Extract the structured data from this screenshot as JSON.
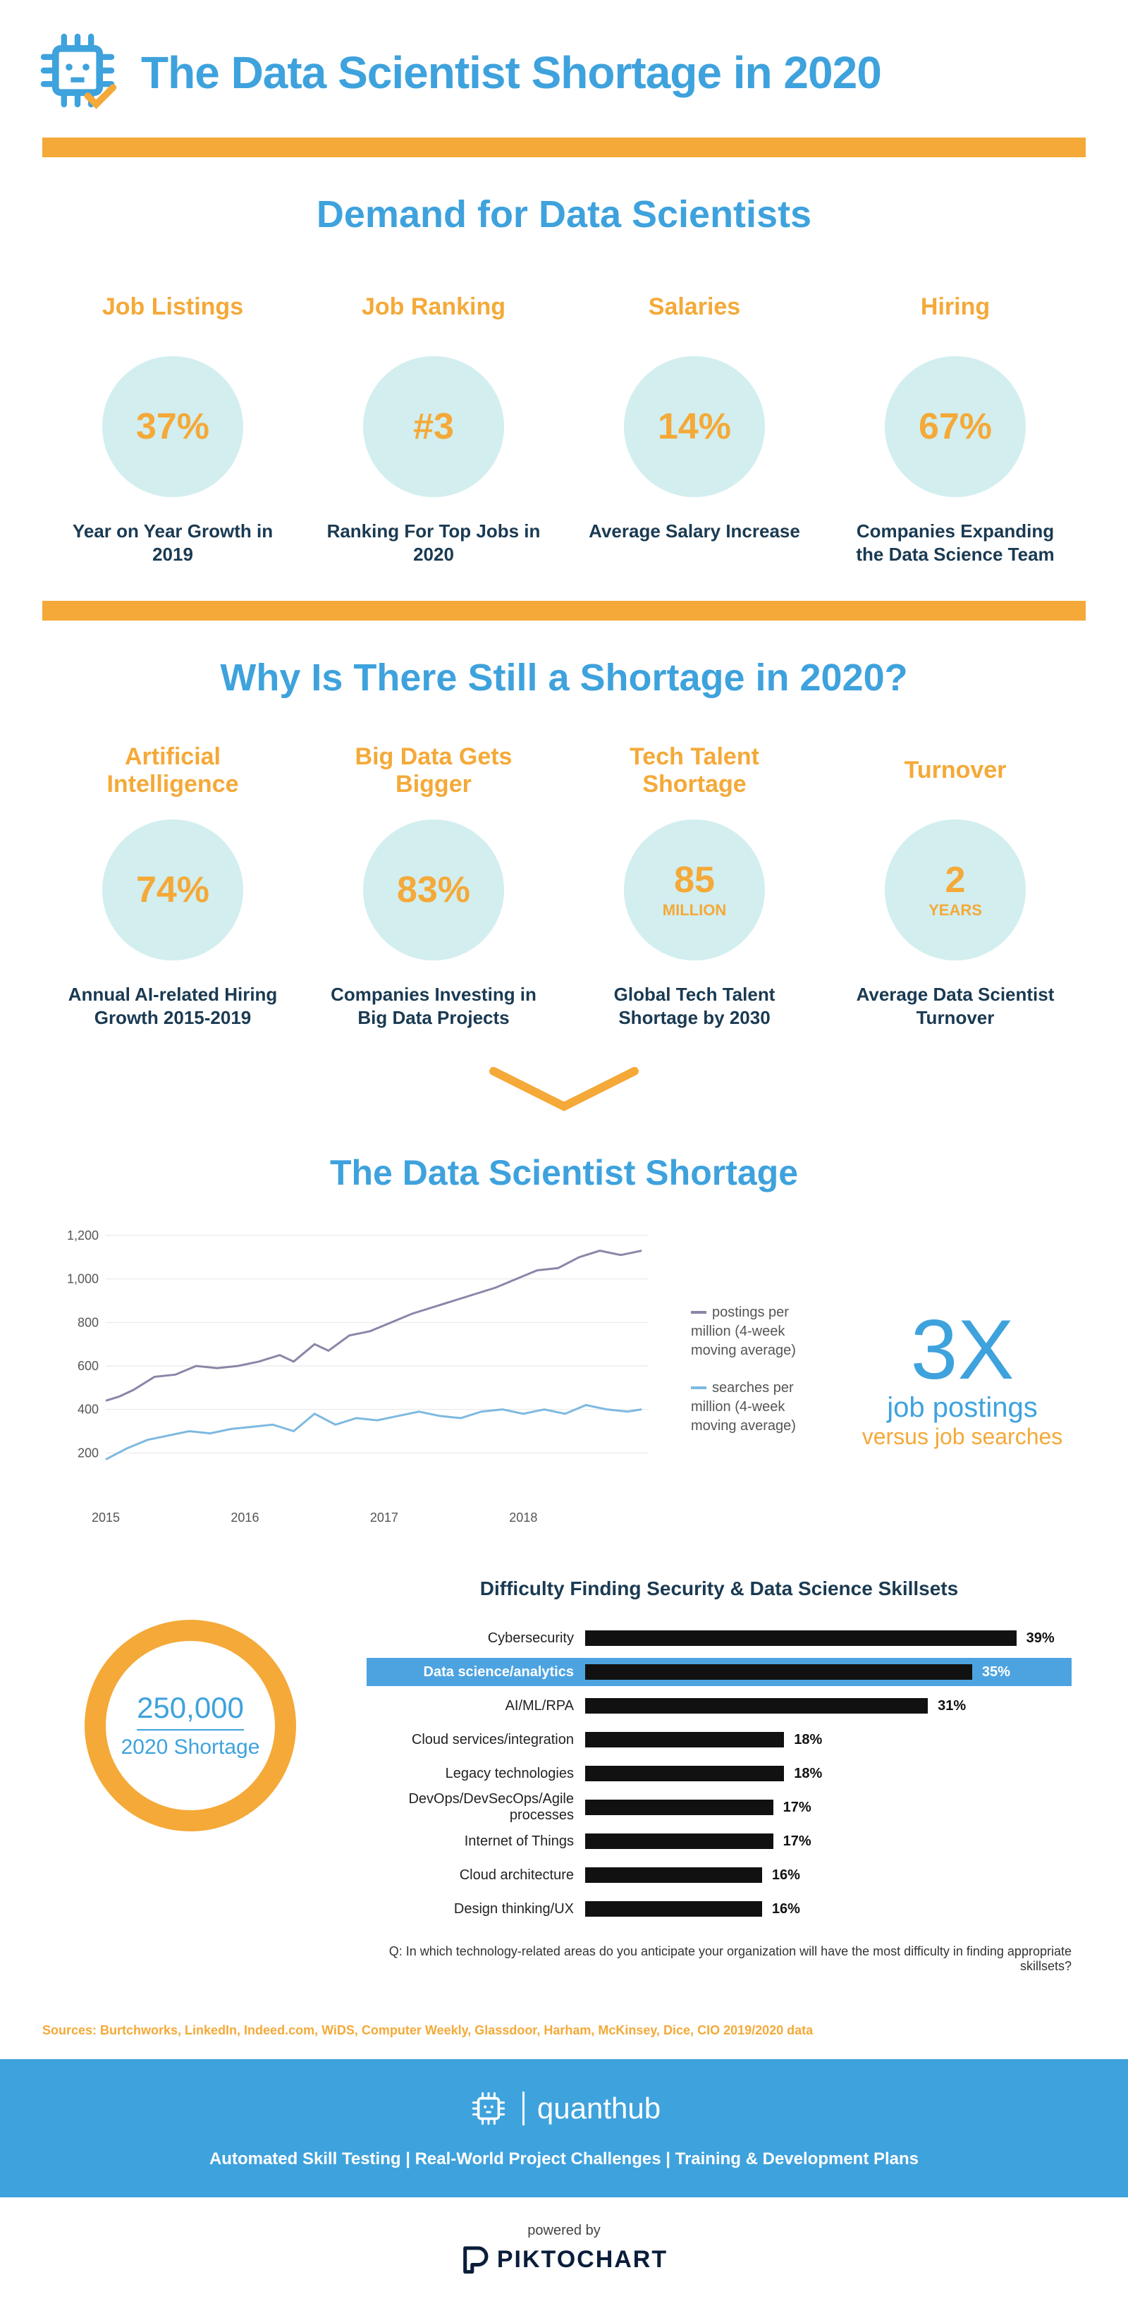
{
  "colors": {
    "blue": "#3ea2dd",
    "orange": "#f4a938",
    "mint": "#d3eeef",
    "navy": "#1a3a52",
    "linePostings": "#8b86a8",
    "lineSearches": "#7eb9e0"
  },
  "header": {
    "title": "The Data Scientist Shortage in 2020"
  },
  "section1": {
    "title": "Demand for Data Scientists",
    "stats": [
      {
        "label": "Job Listings",
        "value": "37%",
        "caption": "Year on Year Growth in 2019"
      },
      {
        "label": "Job Ranking",
        "value": "#3",
        "caption": "Ranking For Top Jobs in 2020"
      },
      {
        "label": "Salaries",
        "value": "14%",
        "caption": "Average Salary Increase"
      },
      {
        "label": "Hiring",
        "value": "67%",
        "caption": "Companies Expanding the Data Science Team"
      }
    ]
  },
  "section2": {
    "title": "Why Is There Still a Shortage in 2020?",
    "stats": [
      {
        "label": "Artificial Intelligence",
        "value": "74%",
        "caption": "Annual AI-related Hiring Growth 2015-2019"
      },
      {
        "label": "Big Data Gets Bigger",
        "value": "83%",
        "caption": "Companies Investing in Big Data Projects"
      },
      {
        "label": "Tech Talent Shortage",
        "value": "85",
        "unit": "MILLION",
        "caption": "Global Tech Talent Shortage by 2030"
      },
      {
        "label": "Turnover",
        "value": "2",
        "unit": "YEARS",
        "caption": "Average Data Scientist Turnover"
      }
    ]
  },
  "shortage": {
    "title": "The Data Scientist Shortage",
    "lineChart": {
      "type": "line",
      "xlim": [
        2015,
        2018.9
      ],
      "ylim": [
        0,
        1200
      ],
      "yticks": [
        200,
        400,
        600,
        800,
        1000,
        1200
      ],
      "ytick_labels": [
        "200",
        "400",
        "600",
        "800",
        "1,000",
        "1,200"
      ],
      "xticks": [
        2015,
        2016,
        2017,
        2018
      ],
      "background_color": "#ffffff",
      "grid_color": "#e6e6e6",
      "series": [
        {
          "name": "postings per million (4-week moving average)",
          "color": "#8b86a8",
          "line_width": 3,
          "points": [
            [
              2015.0,
              440
            ],
            [
              2015.1,
              460
            ],
            [
              2015.2,
              490
            ],
            [
              2015.35,
              550
            ],
            [
              2015.5,
              560
            ],
            [
              2015.65,
              600
            ],
            [
              2015.8,
              590
            ],
            [
              2015.95,
              600
            ],
            [
              2016.1,
              620
            ],
            [
              2016.25,
              650
            ],
            [
              2016.35,
              620
            ],
            [
              2016.5,
              700
            ],
            [
              2016.6,
              670
            ],
            [
              2016.75,
              740
            ],
            [
              2016.9,
              760
            ],
            [
              2017.05,
              800
            ],
            [
              2017.2,
              840
            ],
            [
              2017.35,
              870
            ],
            [
              2017.5,
              900
            ],
            [
              2017.65,
              930
            ],
            [
              2017.8,
              960
            ],
            [
              2017.95,
              1000
            ],
            [
              2018.1,
              1040
            ],
            [
              2018.25,
              1050
            ],
            [
              2018.4,
              1100
            ],
            [
              2018.55,
              1130
            ],
            [
              2018.7,
              1110
            ],
            [
              2018.85,
              1130
            ]
          ]
        },
        {
          "name": "searches per million (4-week moving average)",
          "color": "#7eb9e0",
          "line_width": 3,
          "points": [
            [
              2015.0,
              170
            ],
            [
              2015.15,
              220
            ],
            [
              2015.3,
              260
            ],
            [
              2015.45,
              280
            ],
            [
              2015.6,
              300
            ],
            [
              2015.75,
              290
            ],
            [
              2015.9,
              310
            ],
            [
              2016.05,
              320
            ],
            [
              2016.2,
              330
            ],
            [
              2016.35,
              300
            ],
            [
              2016.5,
              380
            ],
            [
              2016.65,
              330
            ],
            [
              2016.8,
              360
            ],
            [
              2016.95,
              350
            ],
            [
              2017.1,
              370
            ],
            [
              2017.25,
              390
            ],
            [
              2017.4,
              370
            ],
            [
              2017.55,
              360
            ],
            [
              2017.7,
              390
            ],
            [
              2017.85,
              400
            ],
            [
              2018.0,
              380
            ],
            [
              2018.15,
              400
            ],
            [
              2018.3,
              380
            ],
            [
              2018.45,
              420
            ],
            [
              2018.6,
              400
            ],
            [
              2018.75,
              390
            ],
            [
              2018.85,
              400
            ]
          ]
        }
      ]
    },
    "legend": {
      "postings": "postings per million (4-week moving average)",
      "searches": "searches per million (4-week moving average)"
    },
    "callout": {
      "big": "3X",
      "sub1": "job postings",
      "sub2": "versus job searches"
    },
    "ring": {
      "num": "250,000",
      "txt": "2020 Shortage"
    },
    "hbar": {
      "title": "Difficulty Finding Security & Data Science Skillsets",
      "max": 44,
      "rows": [
        {
          "label": "Cybersecurity",
          "pct": 39
        },
        {
          "label": "Data science/analytics",
          "pct": 35,
          "highlight": true
        },
        {
          "label": "AI/ML/RPA",
          "pct": 31
        },
        {
          "label": "Cloud services/integration",
          "pct": 18
        },
        {
          "label": "Legacy technologies",
          "pct": 18
        },
        {
          "label": "DevOps/DevSecOps/Agile processes",
          "pct": 17
        },
        {
          "label": "Internet of Things",
          "pct": 17
        },
        {
          "label": "Cloud architecture",
          "pct": 16
        },
        {
          "label": "Design thinking/UX",
          "pct": 16
        }
      ],
      "question": "Q: In which technology-related areas do you anticipate your organization will have the most difficulty in finding appropriate skillsets?"
    }
  },
  "sources": "Sources: Burtchworks, LinkedIn, Indeed.com,  WiDS, Computer Weekly, Glassdoor, Harham, McKinsey, Dice, CIO  2019/2020 data",
  "footer": {
    "brand": "quanthub",
    "tagline": "Automated Skill Testing  |  Real-World Project Challenges  |  Training & Development Plans"
  },
  "powered": {
    "label": "powered by",
    "name": "PIKTOCHART"
  }
}
